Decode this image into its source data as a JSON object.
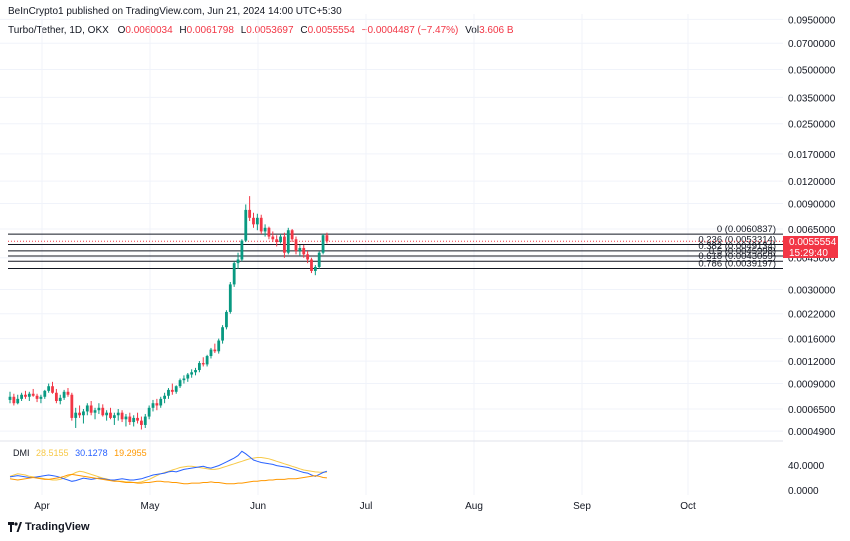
{
  "header": {
    "publisher": "BeInCrypto1 published on TradingView.com, Jun 21, 2024 14:00 UTC+5:30"
  },
  "legend": {
    "symbol": "Turbo/Tether, 1D, OKX",
    "o_label": "O",
    "o": "0.0060034",
    "h_label": "H",
    "h": "0.0061798",
    "l_label": "L",
    "l": "0.0053697",
    "c_label": "C",
    "c": "0.0055554",
    "change": "−0.0004487 (−7.47%)",
    "vol_label": "Vol",
    "vol": "3.606 B"
  },
  "price_axis": {
    "labels": [
      "0.0950000",
      "0.0700000",
      "0.0500000",
      "0.0350000",
      "0.0250000",
      "0.0170000",
      "0.0120000",
      "0.0090000",
      "0.0065000",
      "0.0045000",
      "0.0030000",
      "0.0022000",
      "0.0016000",
      "0.0012000",
      "0.0009000",
      "0.0006500",
      "0.0004900"
    ],
    "current_price": "0.0055554",
    "countdown": "15:29:40"
  },
  "dmi_axis": {
    "labels": [
      "40.0000",
      "0.0000"
    ]
  },
  "time_axis": {
    "labels": [
      "Apr",
      "May",
      "Jun",
      "Jul",
      "Aug",
      "Sep",
      "Oct"
    ]
  },
  "fib_levels": [
    {
      "label": "0 (0.0060837)",
      "value": 0.0060837
    },
    {
      "label": "0.236 (0.0053314)",
      "value": 0.0053314
    },
    {
      "label": "0.382 (0.0049134)",
      "value": 0.0049134
    },
    {
      "label": "0.5 (0.0045998)",
      "value": 0.0045998
    },
    {
      "label": "0.618 (0.0043059)",
      "value": 0.0043059
    },
    {
      "label": "0.786 (0.0039197)",
      "value": 0.0039197
    }
  ],
  "dmi": {
    "label": "DMI",
    "adx": "28.5155",
    "plus_di": "30.1278",
    "minus_di": "19.2955"
  },
  "colors": {
    "up": "#089981",
    "down": "#f23645",
    "adx": "#f7c948",
    "plus_di": "#2962ff",
    "minus_di": "#ff9800",
    "grid": "#f0f3fa",
    "text": "#131722"
  },
  "brand": {
    "name": "TradingView"
  },
  "chart_data": {
    "type": "candlestick",
    "symbol": "Turbo/Tether",
    "interval": "1D",
    "y_scale": "log",
    "ylim": [
      0.00045,
      0.095
    ],
    "date_range": [
      "2024-03-19",
      "2024-06-21"
    ],
    "candles": [
      [
        0.00073,
        0.00081,
        0.0007,
        0.00076
      ],
      [
        0.00076,
        0.00079,
        0.00068,
        0.0007
      ],
      [
        0.0007,
        0.00078,
        0.00069,
        0.00074
      ],
      [
        0.00074,
        0.0008,
        0.00072,
        0.00078
      ],
      [
        0.00078,
        0.00082,
        0.00074,
        0.00076
      ],
      [
        0.00076,
        0.00081,
        0.00072,
        0.00079
      ],
      [
        0.00079,
        0.00084,
        0.00076,
        0.00077
      ],
      [
        0.00077,
        0.00079,
        0.00071,
        0.00074
      ],
      [
        0.00074,
        0.00078,
        0.0007,
        0.00076
      ],
      [
        0.00076,
        0.00083,
        0.00074,
        0.00082
      ],
      [
        0.00082,
        0.0009,
        0.0008,
        0.00087
      ],
      [
        0.00087,
        0.00092,
        0.00079,
        0.0008
      ],
      [
        0.0008,
        0.00084,
        0.0007,
        0.00072
      ],
      [
        0.00072,
        0.00078,
        0.00069,
        0.00075
      ],
      [
        0.00075,
        0.00083,
        0.00073,
        0.00081
      ],
      [
        0.00081,
        0.00085,
        0.00076,
        0.00078
      ],
      [
        0.00078,
        0.0008,
        0.00056,
        0.00058
      ],
      [
        0.00058,
        0.00066,
        0.00051,
        0.00062
      ],
      [
        0.00062,
        0.00068,
        0.00058,
        0.0006
      ],
      [
        0.0006,
        0.00065,
        0.00054,
        0.00063
      ],
      [
        0.00063,
        0.0007,
        0.0006,
        0.00068
      ],
      [
        0.00068,
        0.00072,
        0.0006,
        0.00062
      ],
      [
        0.00062,
        0.00066,
        0.00057,
        0.00064
      ],
      [
        0.00064,
        0.0007,
        0.00061,
        0.00066
      ],
      [
        0.00066,
        0.00069,
        0.00059,
        0.0006
      ],
      [
        0.0006,
        0.00064,
        0.00056,
        0.00062
      ],
      [
        0.00062,
        0.00066,
        0.00057,
        0.00058
      ],
      [
        0.00058,
        0.00062,
        0.00053,
        0.0006
      ],
      [
        0.0006,
        0.00065,
        0.00056,
        0.00062
      ],
      [
        0.00062,
        0.00064,
        0.00055,
        0.00057
      ],
      [
        0.00057,
        0.00061,
        0.00052,
        0.00059
      ],
      [
        0.00059,
        0.00062,
        0.00053,
        0.00055
      ],
      [
        0.00055,
        0.0006,
        0.00052,
        0.00058
      ],
      [
        0.00058,
        0.00062,
        0.00054,
        0.00056
      ],
      [
        0.00056,
        0.00059,
        0.0005,
        0.00053
      ],
      [
        0.00053,
        0.00061,
        0.00051,
        0.00059
      ],
      [
        0.00059,
        0.00068,
        0.00057,
        0.00066
      ],
      [
        0.00066,
        0.00073,
        0.00063,
        0.0007
      ],
      [
        0.0007,
        0.00074,
        0.00064,
        0.00068
      ],
      [
        0.00068,
        0.00076,
        0.00066,
        0.00074
      ],
      [
        0.00074,
        0.0008,
        0.0007,
        0.00077
      ],
      [
        0.00077,
        0.00085,
        0.00074,
        0.00083
      ],
      [
        0.00083,
        0.0009,
        0.00078,
        0.00081
      ],
      [
        0.00081,
        0.00088,
        0.00079,
        0.00087
      ],
      [
        0.00087,
        0.00096,
        0.00085,
        0.00094
      ],
      [
        0.00094,
        0.001,
        0.0009,
        0.00096
      ],
      [
        0.00096,
        0.00103,
        0.00092,
        0.00101
      ],
      [
        0.00101,
        0.00108,
        0.00097,
        0.00104
      ],
      [
        0.00104,
        0.0011,
        0.001,
        0.00107
      ],
      [
        0.00107,
        0.0012,
        0.00104,
        0.00117
      ],
      [
        0.00117,
        0.00126,
        0.00112,
        0.00115
      ],
      [
        0.00115,
        0.0013,
        0.00112,
        0.00128
      ],
      [
        0.00128,
        0.00142,
        0.00124,
        0.00139
      ],
      [
        0.00139,
        0.0015,
        0.00133,
        0.00136
      ],
      [
        0.00136,
        0.0016,
        0.00132,
        0.00156
      ],
      [
        0.00156,
        0.0019,
        0.0015,
        0.00185
      ],
      [
        0.00185,
        0.0023,
        0.0018,
        0.00225
      ],
      [
        0.00225,
        0.0033,
        0.0022,
        0.0032
      ],
      [
        0.0032,
        0.0043,
        0.0031,
        0.0042
      ],
      [
        0.0042,
        0.0048,
        0.0039,
        0.0044
      ],
      [
        0.0044,
        0.0057,
        0.0043,
        0.0056
      ],
      [
        0.0056,
        0.0089,
        0.0055,
        0.0083
      ],
      [
        0.0083,
        0.0099,
        0.0072,
        0.0075
      ],
      [
        0.0075,
        0.008,
        0.0066,
        0.0069
      ],
      [
        0.0069,
        0.0079,
        0.0064,
        0.0075
      ],
      [
        0.0075,
        0.0078,
        0.0061,
        0.0063
      ],
      [
        0.0063,
        0.0069,
        0.0059,
        0.0066
      ],
      [
        0.0066,
        0.0067,
        0.0057,
        0.0059
      ],
      [
        0.0059,
        0.0063,
        0.0055,
        0.0057
      ],
      [
        0.0057,
        0.006,
        0.0052,
        0.0055
      ],
      [
        0.0055,
        0.0061,
        0.0054,
        0.0059
      ],
      [
        0.0059,
        0.0062,
        0.0045,
        0.0048
      ],
      [
        0.0048,
        0.0066,
        0.0047,
        0.0064
      ],
      [
        0.0064,
        0.0065,
        0.0055,
        0.0057
      ],
      [
        0.0057,
        0.0059,
        0.0047,
        0.0049
      ],
      [
        0.0049,
        0.0053,
        0.0046,
        0.0051
      ],
      [
        0.0051,
        0.0053,
        0.0045,
        0.0047
      ],
      [
        0.0047,
        0.0049,
        0.0042,
        0.0044
      ],
      [
        0.0044,
        0.0045,
        0.0037,
        0.0038
      ],
      [
        0.0038,
        0.0041,
        0.0036,
        0.004
      ],
      [
        0.004,
        0.0049,
        0.0039,
        0.0048
      ],
      [
        0.0048,
        0.0061,
        0.0047,
        0.006
      ],
      [
        0.006,
        0.0062,
        0.0054,
        0.005555
      ]
    ],
    "dmi_series": [
      {
        "name": "ADX",
        "values": [
          22,
          24,
          26,
          25,
          24,
          22,
          21,
          20,
          19,
          18,
          17,
          16,
          16,
          17,
          19,
          22,
          25,
          28,
          30,
          29,
          27,
          25,
          23,
          21,
          19,
          18,
          16,
          15,
          14,
          14,
          13,
          13,
          12,
          12,
          13,
          15,
          17,
          20,
          23,
          26,
          28,
          30,
          32,
          34,
          36,
          37,
          38,
          38,
          37,
          36,
          35,
          34,
          33,
          33,
          34,
          36,
          38,
          40,
          42,
          44,
          46,
          48,
          50,
          51,
          52,
          52,
          51,
          50,
          48,
          46,
          44,
          42,
          40,
          38,
          36,
          34,
          32,
          31,
          30,
          29,
          28.6,
          28.5,
          28.5155
        ]
      },
      {
        "name": "+DI",
        "values": [
          21,
          22,
          23,
          22,
          21,
          20,
          20,
          21,
          22,
          23,
          24,
          23,
          22,
          20,
          18,
          16,
          14,
          15,
          17,
          19,
          18,
          17,
          18,
          19,
          18,
          17,
          16,
          16,
          17,
          18,
          17,
          16,
          16,
          17,
          18,
          20,
          22,
          24,
          25,
          26,
          27,
          29,
          30,
          29,
          31,
          33,
          34,
          35,
          36,
          37,
          38,
          36,
          35,
          37,
          39,
          42,
          45,
          48,
          51,
          55,
          62,
          58,
          53,
          48,
          46,
          44,
          43,
          42,
          41,
          39,
          38,
          37,
          36,
          34,
          32,
          30,
          28,
          27,
          24,
          22,
          25,
          28,
          30.1278
        ]
      },
      {
        "name": "−DI",
        "values": [
          18,
          17,
          16,
          17,
          18,
          19,
          20,
          19,
          18,
          17,
          17,
          18,
          19,
          20,
          22,
          24,
          25,
          24,
          23,
          22,
          21,
          20,
          19,
          18,
          17,
          16,
          15,
          14,
          14,
          13,
          12,
          12,
          12,
          11,
          11,
          12,
          12,
          13,
          14,
          14,
          13,
          13,
          12,
          12,
          11,
          10,
          10,
          11,
          11,
          11,
          12,
          12,
          13,
          12,
          12,
          11,
          10,
          10,
          10,
          11,
          11,
          12,
          13,
          14,
          14,
          15,
          15,
          16,
          16,
          17,
          17,
          17,
          18,
          18,
          18,
          19,
          20,
          21,
          22,
          23,
          22,
          20,
          19.2955
        ]
      }
    ]
  }
}
